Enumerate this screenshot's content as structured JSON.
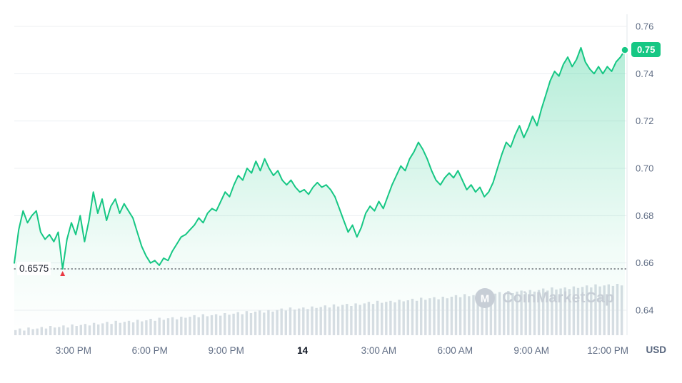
{
  "colors": {
    "background": "#ffffff",
    "accent_green": "#16c784",
    "accent_red": "#ea3943",
    "grid": "#eceff2",
    "axis_text": "#616e85",
    "emphasis_text": "#0d1421",
    "dotted_line": "#222531",
    "volume_bar": "#d7dde3",
    "watermark": "#c7ced6"
  },
  "watermark": {
    "text": "CoinMarketCap",
    "icon": "coinmarketcap-logo"
  },
  "chart_data": {
    "type": "area",
    "unit_label": "USD",
    "current_price_label": "0.75",
    "low_annotation_label": "0.6575",
    "low_value": 0.6575,
    "ylim": [
      0.64,
      0.76
    ],
    "y_ticks": [
      0.76,
      0.74,
      0.72,
      0.7,
      0.68,
      0.66,
      0.64
    ],
    "grid": "horizontal",
    "legend": "none",
    "x_ticks": [
      {
        "label": "3:00 PM",
        "t": 0.097,
        "emphasis": false
      },
      {
        "label": "6:00 PM",
        "t": 0.222,
        "emphasis": false
      },
      {
        "label": "9:00 PM",
        "t": 0.347,
        "emphasis": false
      },
      {
        "label": "14",
        "t": 0.472,
        "emphasis": true
      },
      {
        "label": "3:00 AM",
        "t": 0.597,
        "emphasis": false
      },
      {
        "label": "6:00 AM",
        "t": 0.722,
        "emphasis": false
      },
      {
        "label": "9:00 AM",
        "t": 0.847,
        "emphasis": false
      },
      {
        "label": "12:00 PM",
        "t": 0.972,
        "emphasis": false
      }
    ],
    "price": [
      0.66,
      0.674,
      0.682,
      0.677,
      0.68,
      0.682,
      0.673,
      0.67,
      0.672,
      0.669,
      0.673,
      0.6575,
      0.67,
      0.677,
      0.672,
      0.68,
      0.669,
      0.678,
      0.69,
      0.681,
      0.687,
      0.678,
      0.684,
      0.687,
      0.681,
      0.685,
      0.682,
      0.679,
      0.673,
      0.667,
      0.663,
      0.66,
      0.661,
      0.659,
      0.662,
      0.661,
      0.665,
      0.668,
      0.671,
      0.672,
      0.674,
      0.676,
      0.679,
      0.677,
      0.681,
      0.683,
      0.682,
      0.686,
      0.69,
      0.688,
      0.693,
      0.697,
      0.695,
      0.7,
      0.698,
      0.703,
      0.699,
      0.704,
      0.7,
      0.697,
      0.699,
      0.695,
      0.693,
      0.695,
      0.692,
      0.69,
      0.691,
      0.689,
      0.692,
      0.694,
      0.692,
      0.693,
      0.691,
      0.688,
      0.683,
      0.678,
      0.673,
      0.676,
      0.671,
      0.675,
      0.681,
      0.684,
      0.682,
      0.686,
      0.683,
      0.688,
      0.693,
      0.697,
      0.701,
      0.699,
      0.704,
      0.707,
      0.711,
      0.708,
      0.704,
      0.699,
      0.695,
      0.693,
      0.696,
      0.698,
      0.696,
      0.699,
      0.695,
      0.691,
      0.693,
      0.69,
      0.692,
      0.688,
      0.69,
      0.694,
      0.7,
      0.706,
      0.711,
      0.709,
      0.714,
      0.718,
      0.713,
      0.717,
      0.722,
      0.718,
      0.725,
      0.731,
      0.737,
      0.741,
      0.739,
      0.744,
      0.747,
      0.743,
      0.746,
      0.751,
      0.745,
      0.742,
      0.74,
      0.743,
      0.74,
      0.743,
      0.741,
      0.745,
      0.747,
      0.75
    ],
    "volume": [
      0.1,
      0.13,
      0.09,
      0.15,
      0.12,
      0.13,
      0.16,
      0.13,
      0.18,
      0.15,
      0.16,
      0.19,
      0.15,
      0.21,
      0.18,
      0.2,
      0.22,
      0.19,
      0.24,
      0.21,
      0.23,
      0.26,
      0.22,
      0.28,
      0.24,
      0.26,
      0.28,
      0.25,
      0.3,
      0.27,
      0.29,
      0.32,
      0.28,
      0.34,
      0.3,
      0.33,
      0.35,
      0.31,
      0.36,
      0.34,
      0.36,
      0.39,
      0.35,
      0.41,
      0.37,
      0.39,
      0.41,
      0.38,
      0.43,
      0.4,
      0.42,
      0.45,
      0.41,
      0.47,
      0.43,
      0.46,
      0.48,
      0.44,
      0.49,
      0.46,
      0.49,
      0.52,
      0.48,
      0.54,
      0.5,
      0.52,
      0.54,
      0.51,
      0.56,
      0.53,
      0.55,
      0.58,
      0.54,
      0.6,
      0.56,
      0.59,
      0.61,
      0.57,
      0.62,
      0.59,
      0.62,
      0.65,
      0.61,
      0.67,
      0.63,
      0.65,
      0.67,
      0.64,
      0.69,
      0.66,
      0.68,
      0.71,
      0.67,
      0.73,
      0.69,
      0.72,
      0.74,
      0.7,
      0.75,
      0.72,
      0.75,
      0.78,
      0.74,
      0.8,
      0.76,
      0.78,
      0.8,
      0.77,
      0.82,
      0.79,
      0.81,
      0.84,
      0.8,
      0.86,
      0.82,
      0.85,
      0.87,
      0.83,
      0.88,
      0.85,
      0.88,
      0.91,
      0.87,
      0.93,
      0.89,
      0.91,
      0.93,
      0.9,
      0.95,
      0.92,
      0.94,
      0.97,
      0.93,
      0.99,
      0.95,
      0.97,
      0.99,
      0.96,
      1.0,
      0.97
    ]
  }
}
